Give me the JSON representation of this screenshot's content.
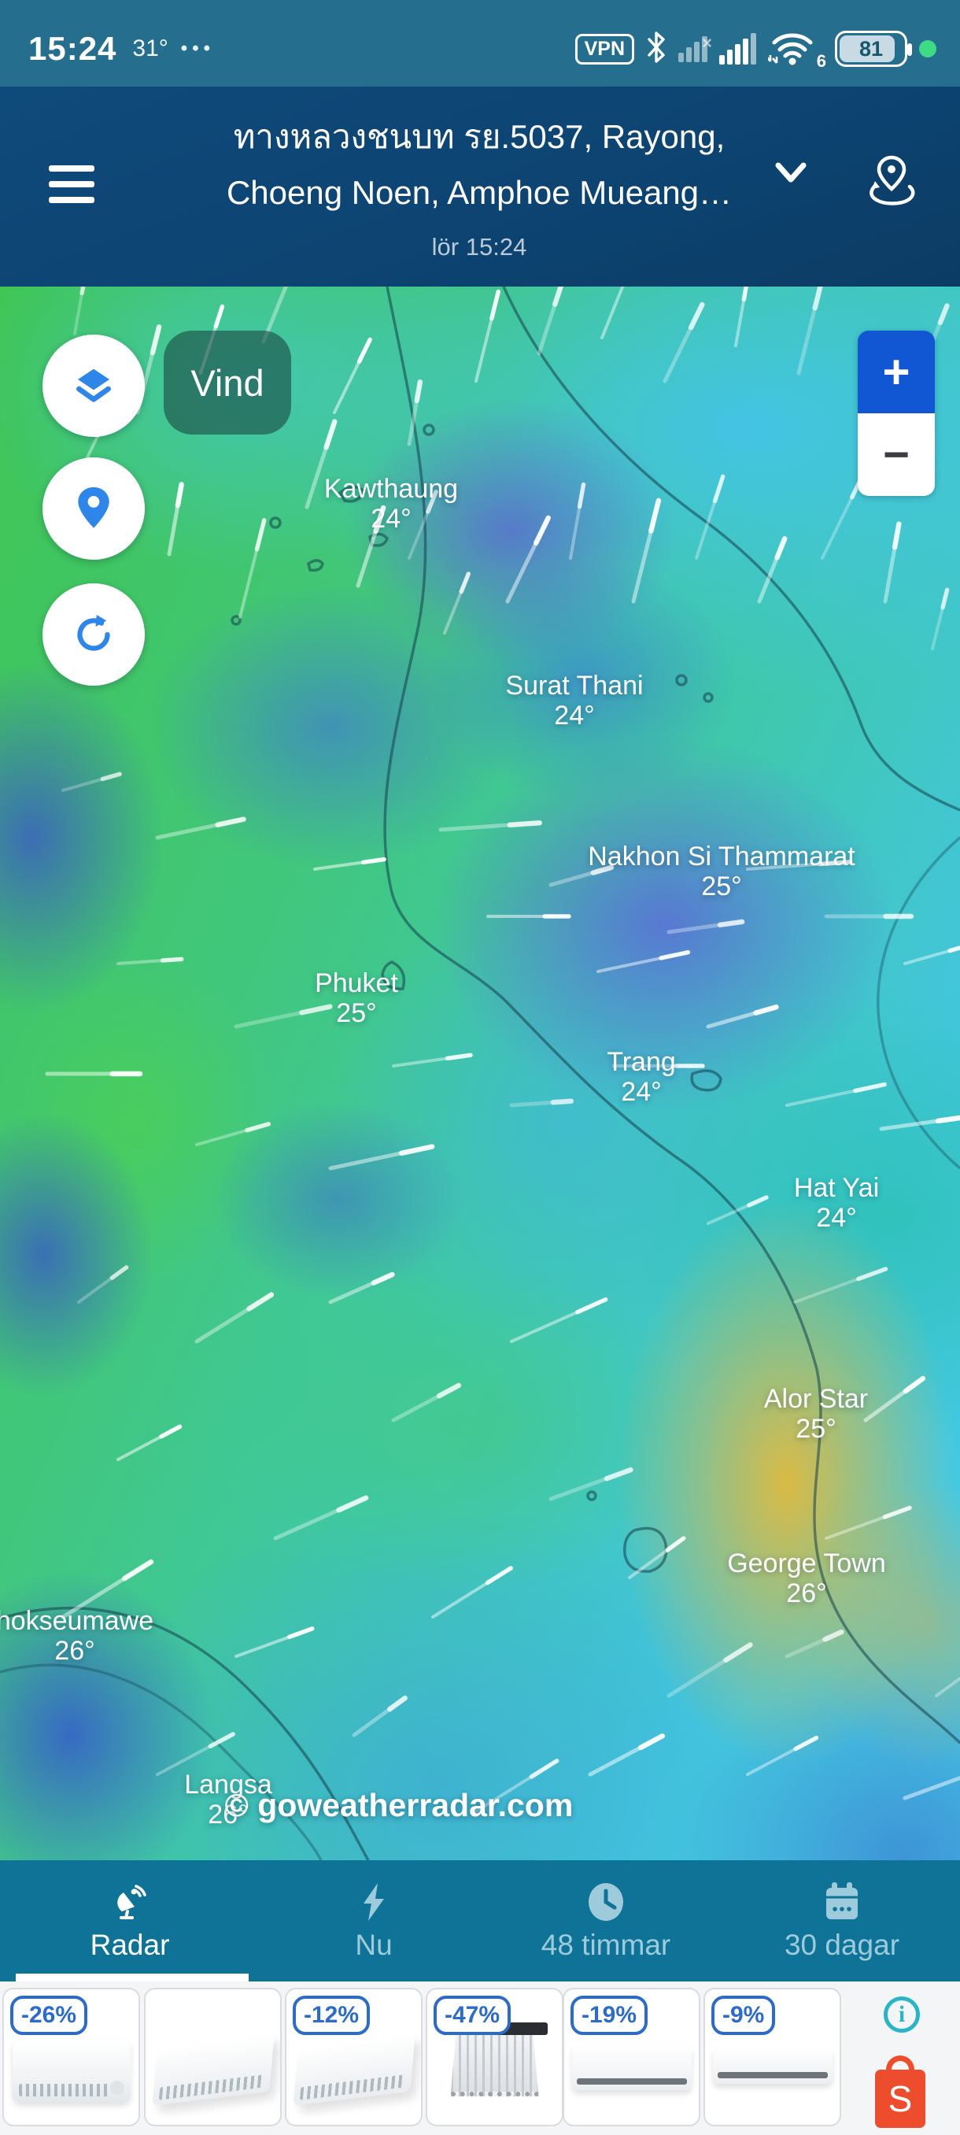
{
  "status": {
    "time": "15:24",
    "temp": "31°",
    "more": "•••",
    "vpn": "VPN",
    "wifi_standard": "6",
    "battery": "81"
  },
  "header": {
    "title_line1": "ทางหลวงชนบท รย.5037, Rayong,",
    "title_line2": "Choeng Noen, Amphoe Mueang…",
    "subtitle": "lör 15:24"
  },
  "map": {
    "layer_chip": "Vind",
    "zoom_in": "+",
    "zoom_out": "−",
    "attribution": "© goweatherradar.com",
    "cities": [
      {
        "name": "Kawthaung",
        "temp": "24°"
      },
      {
        "name": "Surat Thani",
        "temp": "24°"
      },
      {
        "name": "Nakhon Si Thammarat",
        "temp": "25°"
      },
      {
        "name": "Phuket",
        "temp": "25°"
      },
      {
        "name": "Trang",
        "temp": "24°"
      },
      {
        "name": "Hat Yai",
        "temp": "24°"
      },
      {
        "name": "Alor Star",
        "temp": "25°"
      },
      {
        "name": "George Town",
        "temp": "26°"
      },
      {
        "name": "hokseumawe",
        "temp": "26°"
      },
      {
        "name": "Langsa",
        "temp": "26°"
      }
    ]
  },
  "nav": {
    "items": [
      {
        "label": "Radar",
        "active": true
      },
      {
        "label": "Nu",
        "active": false
      },
      {
        "label": "48 timmar",
        "active": false
      },
      {
        "label": "30 dagar",
        "active": false
      }
    ]
  },
  "ads": {
    "badges": [
      "-26%",
      "",
      "-12%",
      "-47%",
      "-19%",
      "-9%"
    ],
    "info_icon": "i",
    "shopee_label": "S"
  },
  "colors": {
    "statusbar_bg": "#256e8e",
    "header_bg": "#0d4472",
    "nav_bg": "#0e7396",
    "nav_inactive": "#9ecbdc",
    "control_accent": "#2e86ea",
    "zoom_in_bg": "#1156d2",
    "badge_blue": "#2b6bc9",
    "shopee_orange": "#ee4d2d",
    "info_teal": "#2ab5c6",
    "privacy_dot_green": "#3ddc84"
  }
}
